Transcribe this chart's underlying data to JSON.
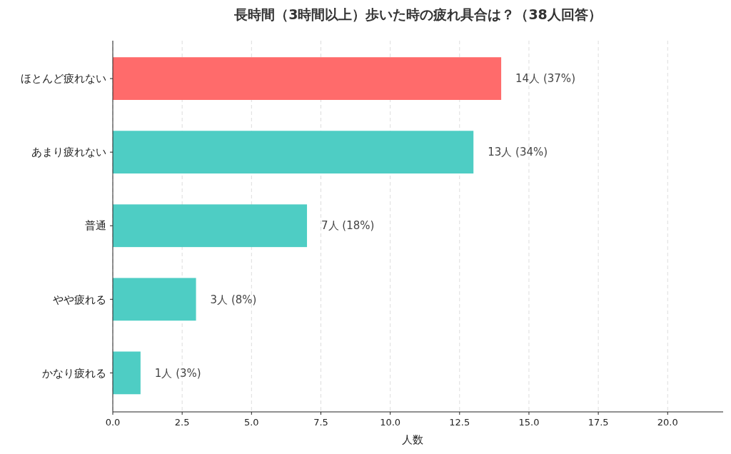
{
  "chart_data": {
    "type": "bar",
    "orientation": "horizontal",
    "title": "長時間（3時間以上）歩いた時の疲れ具合は？（38人回答）",
    "xlabel": "人数",
    "categories": [
      "ほとんど疲れない",
      "あまり疲れない",
      "普通",
      "やや疲れる",
      "かなり疲れる"
    ],
    "values": [
      14,
      13,
      7,
      3,
      1
    ],
    "colors": [
      "#ff6b6b",
      "#4ecdc4",
      "#4ecdc4",
      "#4ecdc4",
      "#4ecdc4"
    ],
    "value_labels": [
      "14人 (37%)",
      "13人 (34%)",
      "7人 (18%)",
      "3人 (8%)",
      "1人 (3%)"
    ],
    "xlim": [
      0,
      22
    ],
    "xticks": [
      {
        "value": 0,
        "label": "0.0"
      },
      {
        "value": 2.5,
        "label": "2.5"
      },
      {
        "value": 5,
        "label": "5.0"
      },
      {
        "value": 7.5,
        "label": "7.5"
      },
      {
        "value": 10,
        "label": "10.0"
      },
      {
        "value": 12.5,
        "label": "12.5"
      },
      {
        "value": 15,
        "label": "15.0"
      },
      {
        "value": 17.5,
        "label": "17.5"
      },
      {
        "value": 20,
        "label": "20.0"
      }
    ],
    "grid": "x"
  }
}
